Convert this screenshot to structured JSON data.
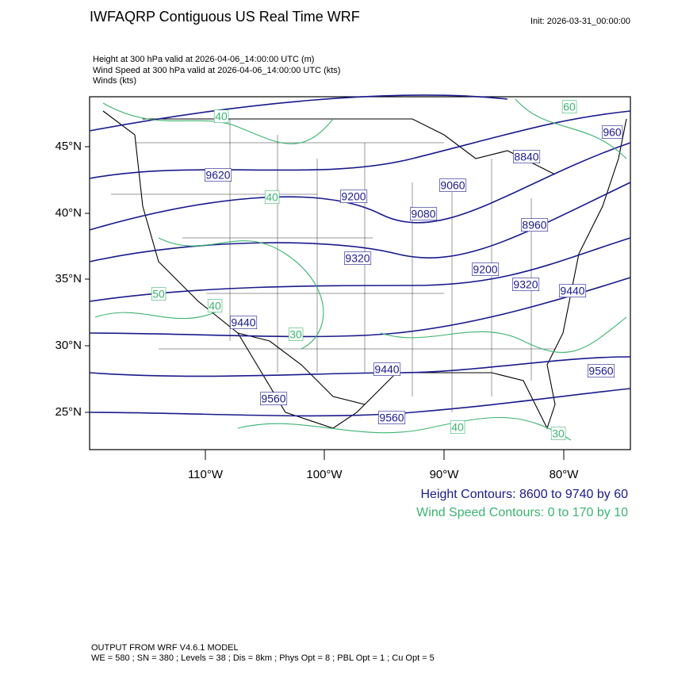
{
  "header": {
    "title": "IWFAQRP Contiguous US Real Time WRF",
    "init": "Init: 2026-03-31_00:00:00",
    "fields": [
      "Height at 300 hPa valid at 2026-04-06_14:00:00 UTC   (m)",
      "Wind Speed at 300 hPa valid at 2026-04-06_14:00:00 UTC   (kts)",
      "Winds   (kts)"
    ]
  },
  "axes": {
    "lat_labels": [
      "45°N",
      "40°N",
      "35°N",
      "30°N",
      "25°N"
    ],
    "lon_labels": [
      "110°W",
      "100°W",
      "90°W",
      "80°W"
    ]
  },
  "contour_labels": {
    "height": [
      "9620",
      "9200",
      "9320",
      "9440",
      "9440",
      "9560",
      "9560",
      "9560",
      "8840",
      "9060",
      "9080",
      "8960",
      "9200",
      "9320",
      "9440",
      "960"
    ],
    "wind": [
      "40",
      "60",
      "40",
      "50",
      "40",
      "30",
      "40",
      "30"
    ]
  },
  "legend": {
    "height": "Height Contours: 8600 to 9740 by 60",
    "wind": "Wind Speed Contours: 0 to 170 by 10"
  },
  "footer": [
    "OUTPUT FROM WRF V4.6.1 MODEL",
    "WE = 580 ; SN = 380 ; Levels = 38 ; Dis = 8km ; Phys Opt = 8 ; PBL Opt = 1 ; Cu Opt = 5"
  ]
}
